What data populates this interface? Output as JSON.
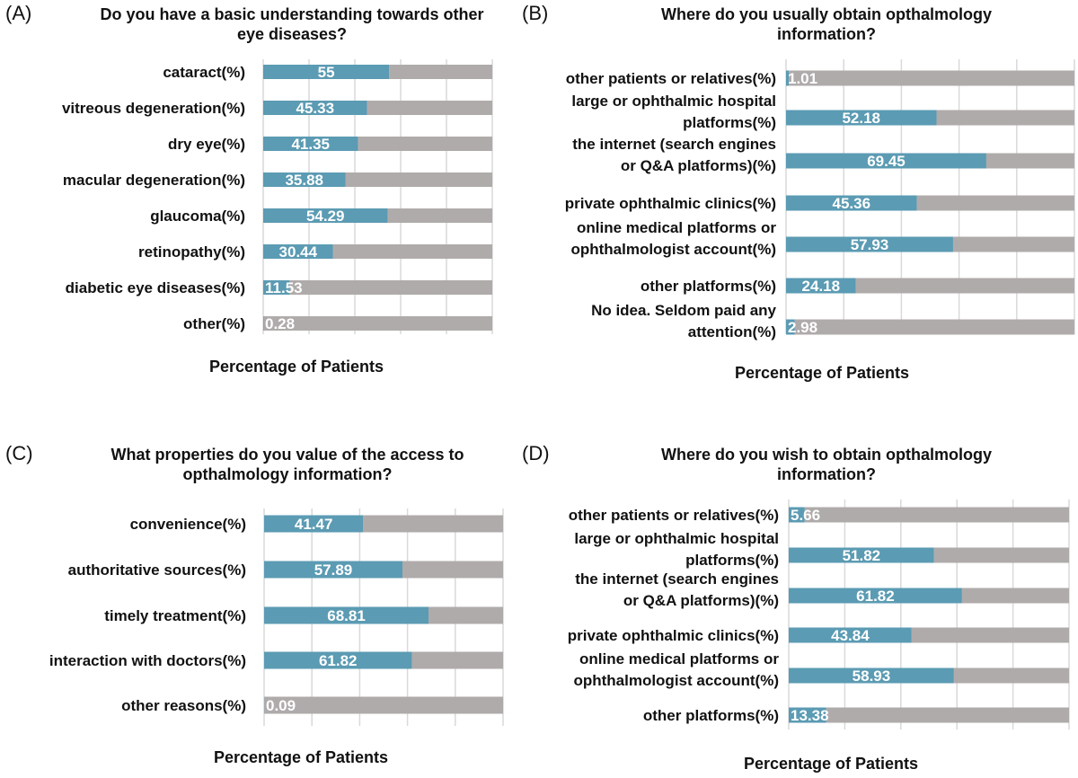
{
  "colors": {
    "bar": "#5b9bb3",
    "rest": "#b0abab",
    "grid": "#d9d9d9",
    "value_text": "#ffffff"
  },
  "chart_data": [
    {
      "type": "bar",
      "panel": "(A)",
      "title": "Do you have a basic understanding towards other eye diseases?",
      "xlabel": "Percentage of Patients",
      "xlim": [
        0,
        100
      ],
      "grid": true,
      "categories": [
        "cataract(%)",
        "vitreous degeneration(%)",
        "dry eye(%)",
        "macular degeneration(%)",
        "glaucoma(%)",
        "retinopathy(%)",
        "diabetic eye diseases(%)",
        "other(%)"
      ],
      "values": [
        55,
        45.33,
        41.35,
        35.88,
        54.29,
        30.44,
        11.53,
        0.28
      ],
      "value_labels": [
        "55",
        "45.33",
        "41.35",
        "35.88",
        "54.29",
        "30.44",
        "11.53",
        "0.28"
      ]
    },
    {
      "type": "bar",
      "panel": "(B)",
      "title": "Where do you usually obtain opthalmology information?",
      "xlabel": "Percentage of Patients",
      "xlim": [
        0,
        100
      ],
      "grid": true,
      "categories": [
        "other patients or relatives(%)",
        "large or ophthalmic hospital platforms(%)",
        "the internet (search engines or Q&A platforms)(%)",
        "private ophthalmic clinics(%)",
        "online medical platforms or ophthalmologist account(%)",
        "other platforms(%)",
        "No idea. Seldom paid any attention(%)"
      ],
      "values": [
        1.01,
        52.18,
        69.45,
        45.36,
        57.93,
        24.18,
        2.98
      ],
      "value_labels": [
        "1.01",
        "52.18",
        "69.45",
        "45.36",
        "57.93",
        "24.18",
        "2.98"
      ]
    },
    {
      "type": "bar",
      "panel": "(C)",
      "title": "What properties do you value of the access to opthalmology information?",
      "xlabel": "Percentage of Patients",
      "xlim": [
        0,
        100
      ],
      "grid": true,
      "categories": [
        "convenience(%)",
        "authoritative sources(%)",
        "timely treatment(%)",
        "interaction with doctors(%)",
        "other reasons(%)"
      ],
      "values": [
        41.47,
        57.89,
        68.81,
        61.82,
        0.09
      ],
      "value_labels": [
        "41.47",
        "57.89",
        "68.81",
        "61.82",
        "0.09"
      ]
    },
    {
      "type": "bar",
      "panel": "(D)",
      "title": "Where do you wish to obtain opthalmology information?",
      "xlabel": "Percentage of Patients",
      "xlim": [
        0,
        100
      ],
      "grid": true,
      "categories": [
        "other patients or relatives(%)",
        "large or ophthalmic hospital platforms(%)",
        "the internet (search engines or Q&A platforms)(%)",
        "private ophthalmic clinics(%)",
        "online medical platforms or ophthalmologist account(%)",
        "other platforms(%)"
      ],
      "values": [
        5.66,
        51.82,
        61.82,
        43.84,
        58.93,
        13.38
      ],
      "value_labels": [
        "5.66",
        "51.82",
        "61.82",
        "43.84",
        "58.93",
        "13.38"
      ]
    }
  ]
}
